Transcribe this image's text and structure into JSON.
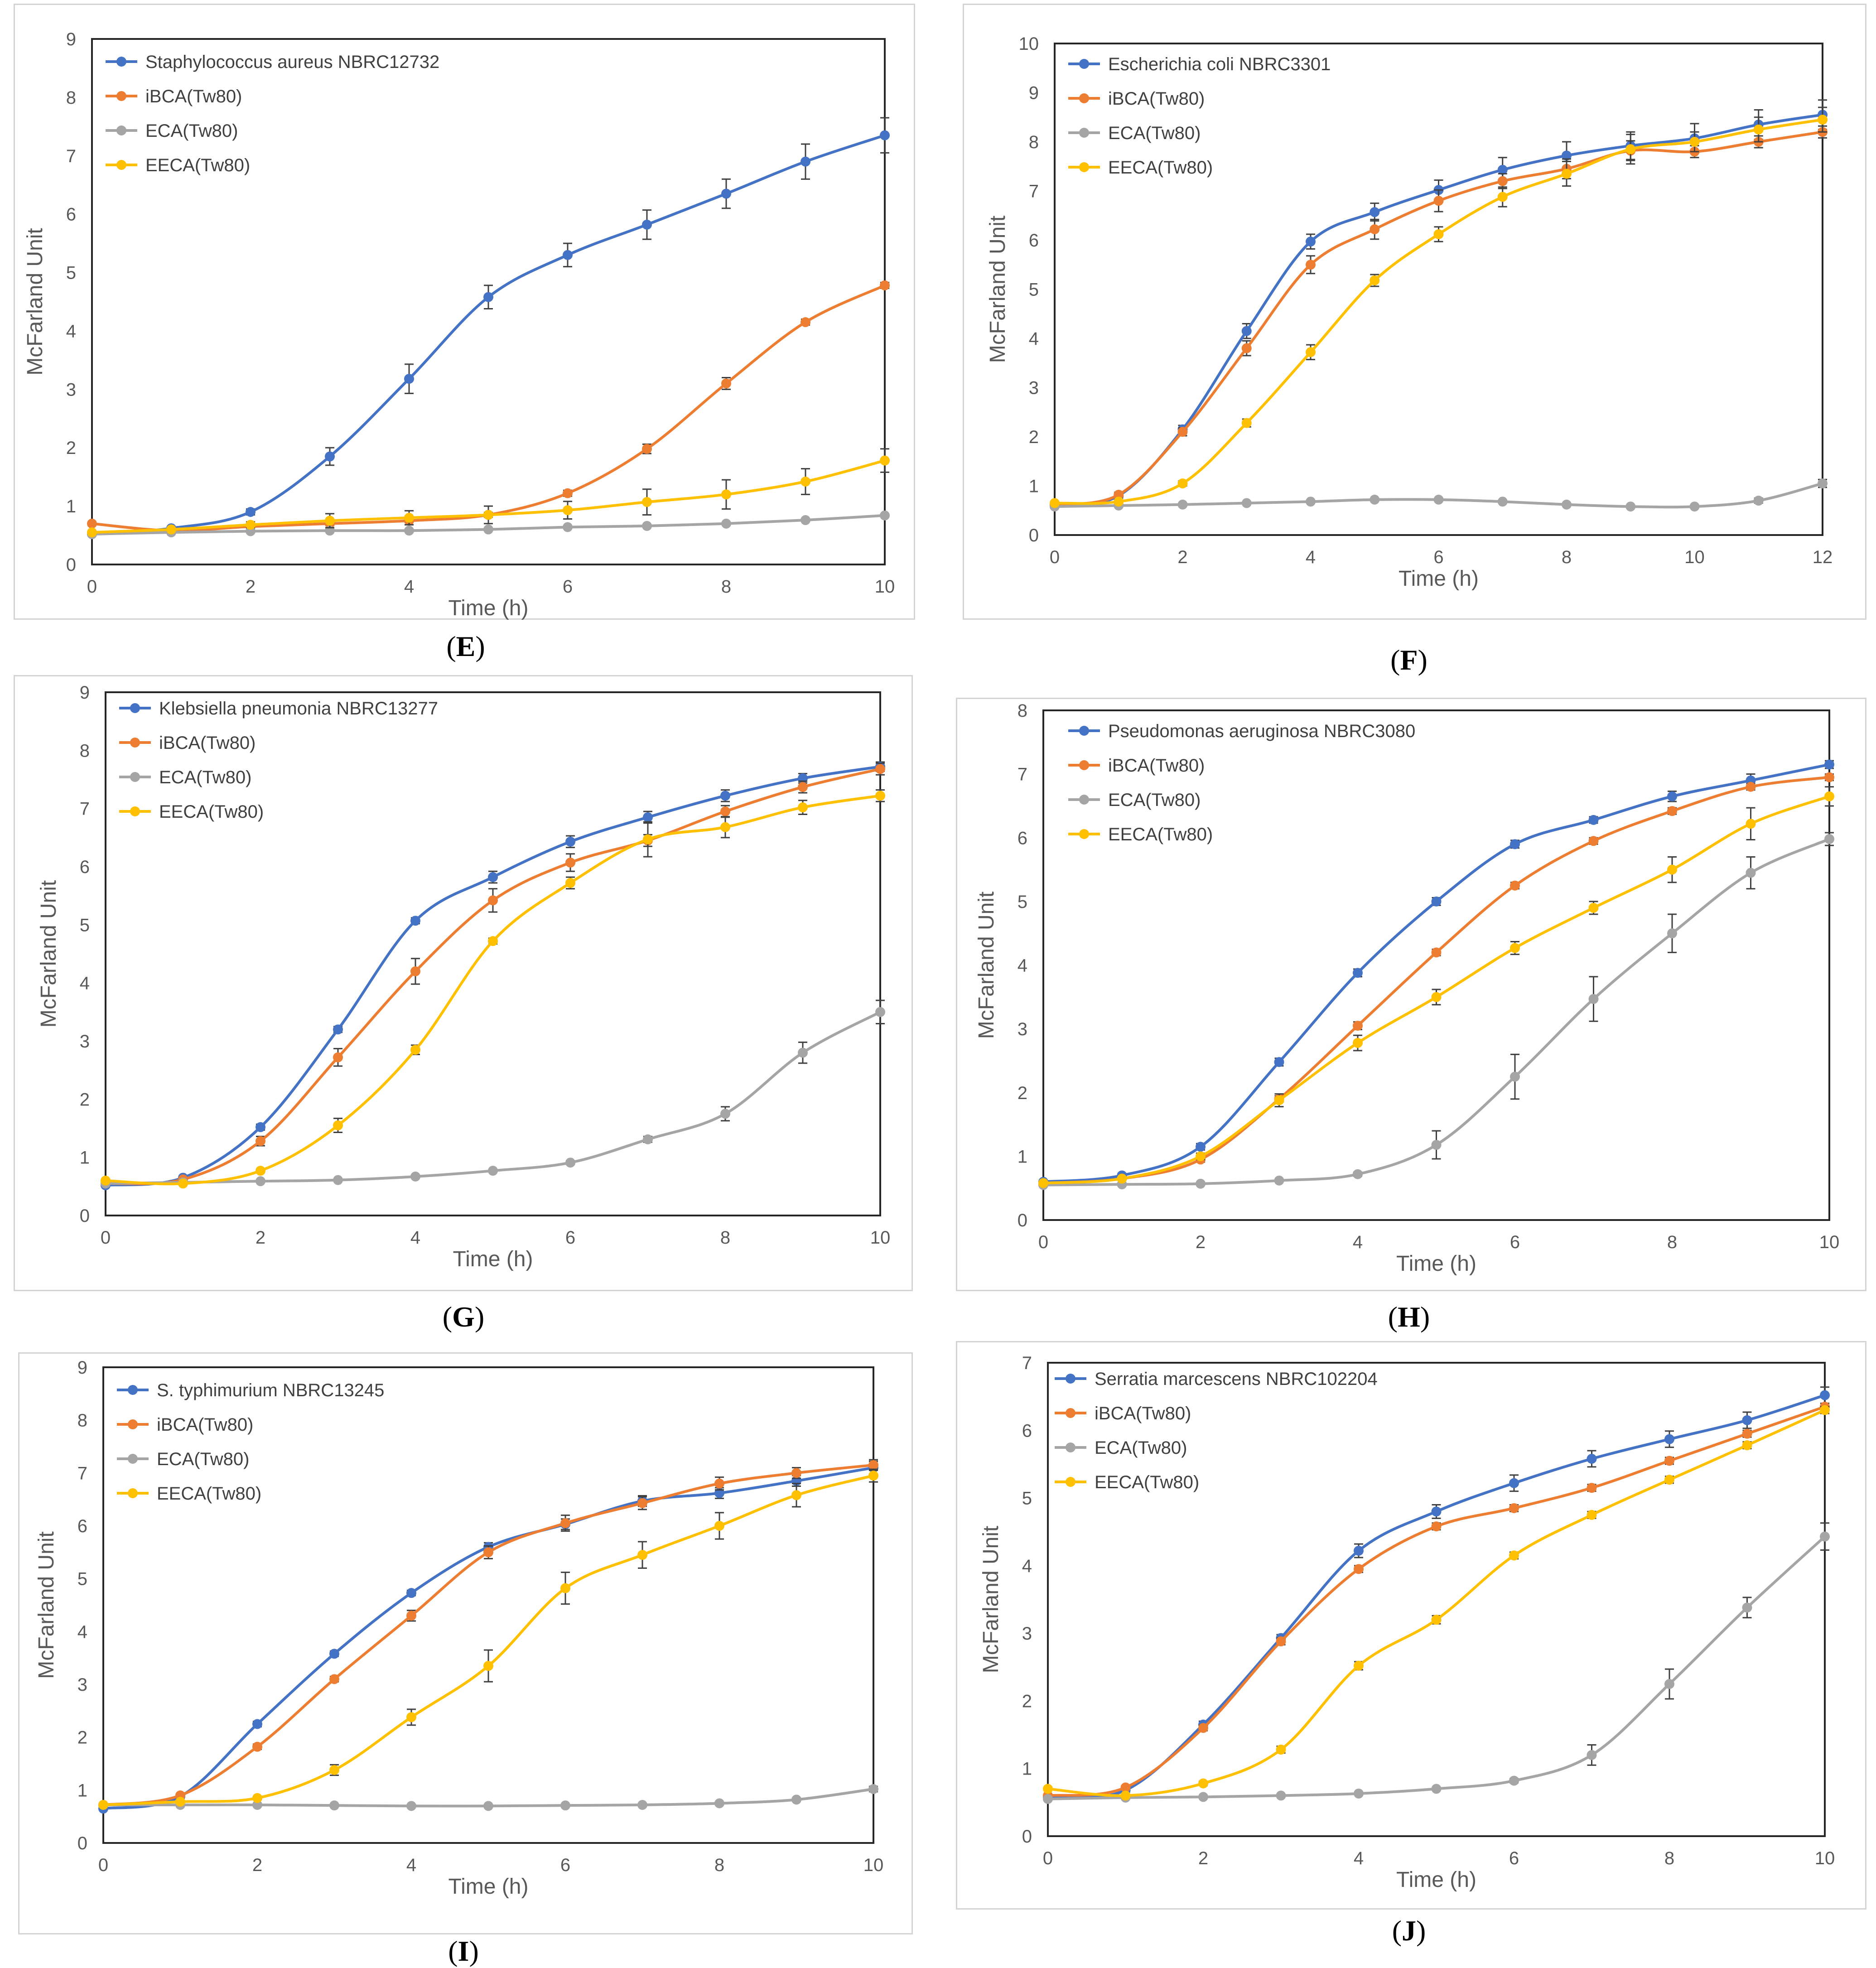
{
  "colors": {
    "blue": "#4472C4",
    "orange": "#ED7D31",
    "gray": "#A5A5A5",
    "yellow": "#FFC000"
  },
  "chart_data": [
    {
      "type": "line",
      "panel": "E",
      "caption": "E",
      "title": "",
      "xlabel": "Time (h)",
      "ylabel": "McFarland Unit",
      "xlim": [
        0,
        10
      ],
      "ylim": [
        0,
        9
      ],
      "xticks": [
        0,
        2,
        4,
        6,
        8,
        10
      ],
      "yticks": [
        0,
        1,
        2,
        3,
        4,
        5,
        6,
        7,
        8,
        9
      ],
      "x": [
        0,
        1,
        2,
        3,
        4,
        5,
        6,
        7,
        8,
        9,
        10
      ],
      "series": [
        {
          "name": "Staphylococcus aureus NBRC12732",
          "color": "#4472C4",
          "values": [
            0.52,
            0.62,
            0.9,
            1.85,
            3.18,
            4.58,
            5.3,
            5.82,
            6.35,
            6.9,
            7.35
          ],
          "errors": [
            0.02,
            0.03,
            0.05,
            0.15,
            0.25,
            0.2,
            0.2,
            0.25,
            0.25,
            0.3,
            0.3
          ]
        },
        {
          "name": "iBCA(Tw80)",
          "color": "#ED7D31",
          "values": [
            0.7,
            0.58,
            0.65,
            0.7,
            0.75,
            0.85,
            1.22,
            1.98,
            3.1,
            4.15,
            4.78
          ],
          "errors": [
            0.02,
            0.02,
            0.02,
            0.03,
            0.03,
            0.04,
            0.05,
            0.08,
            0.1,
            0.05,
            0.05
          ]
        },
        {
          "name": "ECA(Tw80)",
          "color": "#A5A5A5",
          "values": [
            0.52,
            0.55,
            0.57,
            0.58,
            0.58,
            0.6,
            0.64,
            0.66,
            0.7,
            0.76,
            0.84
          ],
          "errors": [
            0.01,
            0.01,
            0.01,
            0.01,
            0.01,
            0.01,
            0.01,
            0.01,
            0.01,
            0.02,
            0.02
          ]
        },
        {
          "name": "EECA(Tw80)",
          "color": "#FFC000",
          "values": [
            0.55,
            0.6,
            0.68,
            0.75,
            0.8,
            0.85,
            0.93,
            1.07,
            1.2,
            1.42,
            1.78
          ],
          "errors": [
            0.02,
            0.03,
            0.05,
            0.12,
            0.12,
            0.15,
            0.15,
            0.22,
            0.25,
            0.22,
            0.2
          ]
        }
      ]
    },
    {
      "type": "line",
      "panel": "F",
      "caption": "F",
      "title": "",
      "xlabel": "Time (h)",
      "ylabel": "McFarland Unit",
      "xlim": [
        0,
        12
      ],
      "ylim": [
        0,
        10
      ],
      "xticks": [
        0,
        2,
        4,
        6,
        8,
        10,
        12
      ],
      "yticks": [
        0,
        1,
        2,
        3,
        4,
        5,
        6,
        7,
        8,
        9,
        10
      ],
      "x": [
        0,
        1,
        2,
        3,
        4,
        5,
        6,
        7,
        8,
        9,
        10,
        11,
        12
      ],
      "series": [
        {
          "name": "Escherichia coli NBRC3301",
          "color": "#4472C4",
          "values": [
            0.6,
            0.8,
            2.15,
            4.15,
            5.97,
            6.57,
            7.02,
            7.43,
            7.72,
            7.92,
            8.07,
            8.35,
            8.55
          ],
          "errors": [
            0.03,
            0.05,
            0.08,
            0.15,
            0.15,
            0.18,
            0.2,
            0.25,
            0.28,
            0.28,
            0.3,
            0.3,
            0.3
          ]
        },
        {
          "name": "iBCA(Tw80)",
          "color": "#ED7D31",
          "values": [
            0.62,
            0.82,
            2.1,
            3.8,
            5.5,
            6.22,
            6.8,
            7.2,
            7.45,
            7.82,
            7.8,
            8.0,
            8.2
          ],
          "errors": [
            0.03,
            0.05,
            0.08,
            0.15,
            0.18,
            0.2,
            0.22,
            0.15,
            0.2,
            0.2,
            0.12,
            0.12,
            0.12
          ]
        },
        {
          "name": "ECA(Tw80)",
          "color": "#A5A5A5",
          "values": [
            0.58,
            0.6,
            0.62,
            0.65,
            0.68,
            0.72,
            0.72,
            0.68,
            0.62,
            0.58,
            0.58,
            0.7,
            1.05
          ],
          "errors": [
            0.02,
            0.02,
            0.02,
            0.02,
            0.02,
            0.02,
            0.02,
            0.02,
            0.02,
            0.02,
            0.02,
            0.05,
            0.08
          ]
        },
        {
          "name": "EECA(Tw80)",
          "color": "#FFC000",
          "values": [
            0.65,
            0.68,
            1.05,
            2.28,
            3.72,
            5.18,
            6.12,
            6.88,
            7.35,
            7.85,
            8.0,
            8.25,
            8.45
          ],
          "errors": [
            0.02,
            0.03,
            0.05,
            0.08,
            0.15,
            0.12,
            0.15,
            0.2,
            0.25,
            0.3,
            0.2,
            0.25,
            0.25
          ]
        }
      ]
    },
    {
      "type": "line",
      "panel": "G",
      "caption": "G",
      "title": "",
      "xlabel": "Time (h)",
      "ylabel": "McFarland Unit",
      "xlim": [
        0,
        10
      ],
      "ylim": [
        0,
        9
      ],
      "xticks": [
        0,
        2,
        4,
        6,
        8,
        10
      ],
      "yticks": [
        0,
        1,
        2,
        3,
        4,
        5,
        6,
        7,
        8,
        9
      ],
      "x": [
        0,
        1,
        2,
        3,
        4,
        5,
        6,
        7,
        8,
        9,
        10
      ],
      "series": [
        {
          "name": "Klebsiella pneumonia NBRC13277",
          "color": "#4472C4",
          "values": [
            0.52,
            0.65,
            1.52,
            3.2,
            5.07,
            5.82,
            6.43,
            6.85,
            7.22,
            7.52,
            7.72
          ],
          "errors": [
            0.02,
            0.03,
            0.05,
            0.05,
            0.05,
            0.1,
            0.1,
            0.1,
            0.1,
            0.08,
            0.08
          ]
        },
        {
          "name": "iBCA(Tw80)",
          "color": "#ED7D31",
          "values": [
            0.55,
            0.62,
            1.28,
            2.72,
            4.2,
            5.42,
            6.07,
            6.45,
            6.95,
            7.37,
            7.68
          ],
          "errors": [
            0.02,
            0.03,
            0.08,
            0.15,
            0.22,
            0.2,
            0.15,
            0.1,
            0.1,
            0.1,
            0.1
          ]
        },
        {
          "name": "ECA(Tw80)",
          "color": "#A5A5A5",
          "values": [
            0.55,
            0.57,
            0.59,
            0.61,
            0.67,
            0.77,
            0.91,
            1.31,
            1.75,
            2.8,
            3.5
          ],
          "errors": [
            0.01,
            0.01,
            0.01,
            0.01,
            0.02,
            0.02,
            0.03,
            0.05,
            0.12,
            0.18,
            0.2
          ]
        },
        {
          "name": "EECA(Tw80)",
          "color": "#FFC000",
          "values": [
            0.6,
            0.55,
            0.77,
            1.55,
            2.85,
            4.72,
            5.72,
            6.47,
            6.68,
            7.02,
            7.22
          ],
          "errors": [
            0.02,
            0.02,
            0.03,
            0.12,
            0.08,
            0.05,
            0.1,
            0.3,
            0.18,
            0.12,
            0.1
          ]
        }
      ]
    },
    {
      "type": "line",
      "panel": "H",
      "caption": "H",
      "title": "",
      "xlabel": "Time (h)",
      "ylabel": "McFarland Unit",
      "xlim": [
        0,
        10
      ],
      "ylim": [
        0,
        8
      ],
      "xticks": [
        0,
        2,
        4,
        6,
        8,
        10
      ],
      "yticks": [
        0,
        1,
        2,
        3,
        4,
        5,
        6,
        7,
        8
      ],
      "x": [
        0,
        1,
        2,
        3,
        4,
        5,
        6,
        7,
        8,
        9,
        10
      ],
      "series": [
        {
          "name": "Pseudomonas aeruginosa NBRC3080",
          "color": "#4472C4",
          "values": [
            0.6,
            0.7,
            1.15,
            2.48,
            3.88,
            5.0,
            5.9,
            6.28,
            6.65,
            6.9,
            7.15
          ],
          "errors": [
            0.02,
            0.03,
            0.05,
            0.06,
            0.06,
            0.06,
            0.06,
            0.05,
            0.08,
            0.1,
            0.06
          ]
        },
        {
          "name": "iBCA(Tw80)",
          "color": "#ED7D31",
          "values": [
            0.58,
            0.65,
            0.95,
            1.9,
            3.05,
            4.2,
            5.25,
            5.95,
            6.42,
            6.8,
            6.95
          ],
          "errors": [
            0.02,
            0.02,
            0.04,
            0.05,
            0.06,
            0.05,
            0.05,
            0.05,
            0.05,
            0.05,
            0.05
          ]
        },
        {
          "name": "ECA(Tw80)",
          "color": "#A5A5A5",
          "values": [
            0.55,
            0.56,
            0.57,
            0.62,
            0.72,
            1.18,
            2.25,
            3.47,
            4.5,
            5.45,
            5.98
          ],
          "errors": [
            0.01,
            0.01,
            0.02,
            0.02,
            0.03,
            0.22,
            0.35,
            0.35,
            0.3,
            0.25,
            0.1
          ]
        },
        {
          "name": "EECA(Tw80)",
          "color": "#FFC000",
          "values": [
            0.58,
            0.65,
            1.0,
            1.88,
            2.78,
            3.5,
            4.27,
            4.9,
            5.5,
            6.22,
            6.65
          ],
          "errors": [
            0.02,
            0.02,
            0.05,
            0.1,
            0.12,
            0.12,
            0.1,
            0.1,
            0.2,
            0.25,
            0.15
          ]
        }
      ]
    },
    {
      "type": "line",
      "panel": "I",
      "caption": "I",
      "title": "",
      "xlabel": "Time (h)",
      "ylabel": "McFarland Unit",
      "xlim": [
        0,
        10
      ],
      "ylim": [
        0,
        9
      ],
      "xticks": [
        0,
        2,
        4,
        6,
        8,
        10
      ],
      "yticks": [
        0,
        1,
        2,
        3,
        4,
        5,
        6,
        7,
        8,
        9
      ],
      "x": [
        0,
        1,
        2,
        3,
        4,
        5,
        6,
        7,
        8,
        9,
        10
      ],
      "series": [
        {
          "name": "S. typhimurium NBRC13245",
          "color": "#4472C4",
          "values": [
            0.65,
            0.88,
            2.25,
            3.58,
            4.73,
            5.6,
            6.03,
            6.47,
            6.62,
            6.85,
            7.1
          ],
          "errors": [
            0.02,
            0.03,
            0.05,
            0.05,
            0.05,
            0.08,
            0.1,
            0.1,
            0.1,
            0.1,
            0.12
          ]
        },
        {
          "name": "iBCA(Tw80)",
          "color": "#ED7D31",
          "values": [
            0.72,
            0.9,
            1.82,
            3.1,
            4.3,
            5.5,
            6.05,
            6.43,
            6.8,
            7.0,
            7.15
          ],
          "errors": [
            0.02,
            0.03,
            0.05,
            0.05,
            0.1,
            0.12,
            0.15,
            0.12,
            0.12,
            0.1,
            0.1
          ]
        },
        {
          "name": "ECA(Tw80)",
          "color": "#A5A5A5",
          "values": [
            0.72,
            0.72,
            0.72,
            0.71,
            0.7,
            0.7,
            0.71,
            0.72,
            0.75,
            0.82,
            1.02
          ],
          "errors": [
            0.01,
            0.01,
            0.01,
            0.01,
            0.01,
            0.01,
            0.01,
            0.01,
            0.02,
            0.03,
            0.05
          ]
        },
        {
          "name": "EECA(Tw80)",
          "color": "#FFC000",
          "values": [
            0.72,
            0.78,
            0.85,
            1.38,
            2.38,
            3.35,
            4.82,
            5.45,
            6.0,
            6.58,
            6.95
          ],
          "errors": [
            0.02,
            0.02,
            0.03,
            0.1,
            0.15,
            0.3,
            0.3,
            0.25,
            0.25,
            0.22,
            0.12
          ]
        }
      ]
    },
    {
      "type": "line",
      "panel": "J",
      "caption": "J",
      "title": "",
      "xlabel": "Time (h)",
      "ylabel": "McFarland Unit",
      "xlim": [
        0,
        10
      ],
      "ylim": [
        0,
        7
      ],
      "xticks": [
        0,
        2,
        4,
        6,
        8,
        10
      ],
      "yticks": [
        0,
        1,
        2,
        3,
        4,
        5,
        6,
        7
      ],
      "x": [
        0,
        1,
        2,
        3,
        4,
        5,
        6,
        7,
        8,
        9,
        10
      ],
      "series": [
        {
          "name": "Serratia marcescens NBRC102204",
          "color": "#4472C4",
          "values": [
            0.58,
            0.68,
            1.65,
            2.93,
            4.22,
            4.8,
            5.22,
            5.58,
            5.87,
            6.15,
            6.52
          ],
          "errors": [
            0.02,
            0.03,
            0.05,
            0.05,
            0.1,
            0.1,
            0.12,
            0.12,
            0.12,
            0.12,
            0.12
          ]
        },
        {
          "name": "iBCA(Tw80)",
          "color": "#ED7D31",
          "values": [
            0.6,
            0.72,
            1.6,
            2.88,
            3.95,
            4.58,
            4.85,
            5.15,
            5.55,
            5.95,
            6.35
          ],
          "errors": [
            0.02,
            0.02,
            0.04,
            0.05,
            0.05,
            0.05,
            0.05,
            0.05,
            0.05,
            0.05,
            0.05
          ]
        },
        {
          "name": "ECA(Tw80)",
          "color": "#A5A5A5",
          "values": [
            0.55,
            0.57,
            0.58,
            0.6,
            0.63,
            0.7,
            0.82,
            1.2,
            2.25,
            3.38,
            4.43
          ],
          "errors": [
            0.01,
            0.01,
            0.01,
            0.01,
            0.01,
            0.02,
            0.03,
            0.15,
            0.22,
            0.15,
            0.2
          ]
        },
        {
          "name": "EECA(Tw80)",
          "color": "#FFC000",
          "values": [
            0.7,
            0.6,
            0.78,
            1.28,
            2.52,
            3.2,
            4.15,
            4.75,
            5.27,
            5.78,
            6.3
          ],
          "errors": [
            0.02,
            0.02,
            0.03,
            0.05,
            0.06,
            0.06,
            0.05,
            0.05,
            0.05,
            0.05,
            0.05
          ]
        }
      ]
    }
  ]
}
